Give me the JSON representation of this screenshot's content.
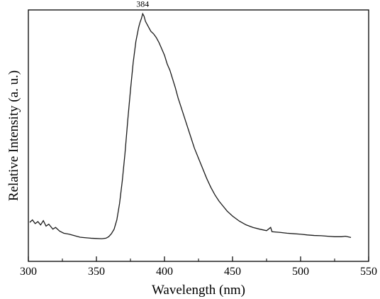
{
  "chart_data": {
    "type": "line",
    "xlabel": "Wavelength (nm)",
    "ylabel": "Relative Intensity (a. u.)",
    "xlim": [
      300,
      550
    ],
    "ylim": [
      0,
      1
    ],
    "x_ticks": [
      300,
      350,
      400,
      450,
      500,
      550
    ],
    "y_ticks_labeled": false,
    "grid": false,
    "annotations": [
      {
        "text": "384",
        "x": 384,
        "y": 0.99
      }
    ],
    "series": [
      {
        "color": "#1a1a1a",
        "points": [
          [
            301,
            0.155
          ],
          [
            303,
            0.165
          ],
          [
            305,
            0.15
          ],
          [
            307,
            0.158
          ],
          [
            309,
            0.145
          ],
          [
            311,
            0.162
          ],
          [
            313,
            0.14
          ],
          [
            315,
            0.148
          ],
          [
            318,
            0.128
          ],
          [
            320,
            0.135
          ],
          [
            323,
            0.12
          ],
          [
            326,
            0.112
          ],
          [
            330,
            0.108
          ],
          [
            334,
            0.102
          ],
          [
            338,
            0.096
          ],
          [
            342,
            0.094
          ],
          [
            346,
            0.092
          ],
          [
            350,
            0.091
          ],
          [
            354,
            0.09
          ],
          [
            357,
            0.092
          ],
          [
            359,
            0.098
          ],
          [
            361,
            0.11
          ],
          [
            363,
            0.128
          ],
          [
            365,
            0.165
          ],
          [
            367,
            0.23
          ],
          [
            369,
            0.32
          ],
          [
            371,
            0.43
          ],
          [
            373,
            0.56
          ],
          [
            375,
            0.68
          ],
          [
            377,
            0.79
          ],
          [
            379,
            0.875
          ],
          [
            381,
            0.93
          ],
          [
            382,
            0.95
          ],
          [
            383,
            0.965
          ],
          [
            384,
            0.985
          ],
          [
            385,
            0.975
          ],
          [
            386,
            0.955
          ],
          [
            388,
            0.935
          ],
          [
            390,
            0.915
          ],
          [
            392,
            0.905
          ],
          [
            394,
            0.89
          ],
          [
            396,
            0.87
          ],
          [
            398,
            0.845
          ],
          [
            400,
            0.82
          ],
          [
            402,
            0.785
          ],
          [
            404,
            0.76
          ],
          [
            406,
            0.725
          ],
          [
            408,
            0.69
          ],
          [
            410,
            0.65
          ],
          [
            413,
            0.6
          ],
          [
            416,
            0.55
          ],
          [
            419,
            0.5
          ],
          [
            422,
            0.45
          ],
          [
            425,
            0.41
          ],
          [
            428,
            0.37
          ],
          [
            431,
            0.33
          ],
          [
            434,
            0.295
          ],
          [
            437,
            0.265
          ],
          [
            440,
            0.24
          ],
          [
            443,
            0.22
          ],
          [
            446,
            0.2
          ],
          [
            450,
            0.18
          ],
          [
            455,
            0.16
          ],
          [
            460,
            0.145
          ],
          [
            465,
            0.135
          ],
          [
            470,
            0.128
          ],
          [
            475,
            0.122
          ],
          [
            478,
            0.135
          ],
          [
            479,
            0.118
          ],
          [
            485,
            0.115
          ],
          [
            490,
            0.112
          ],
          [
            495,
            0.11
          ],
          [
            500,
            0.108
          ],
          [
            505,
            0.105
          ],
          [
            510,
            0.103
          ],
          [
            515,
            0.102
          ],
          [
            520,
            0.1
          ],
          [
            525,
            0.098
          ],
          [
            530,
            0.098
          ],
          [
            533,
            0.1
          ],
          [
            537,
            0.095
          ]
        ]
      }
    ]
  }
}
